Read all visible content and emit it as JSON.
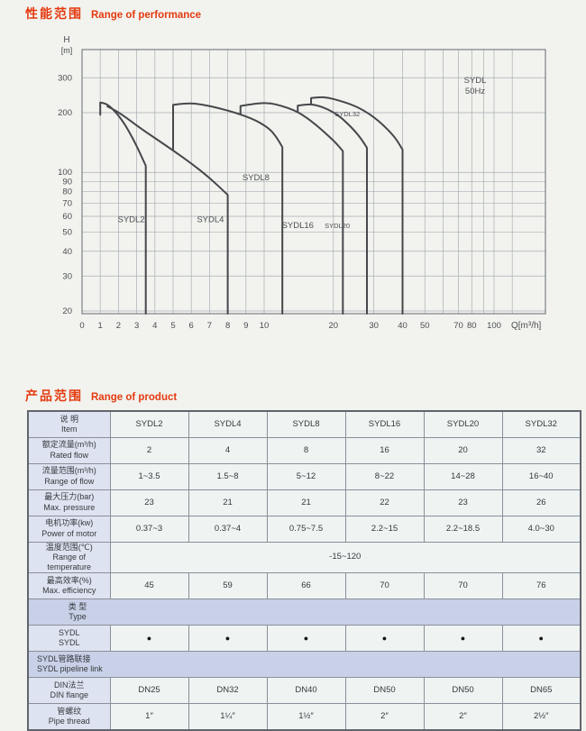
{
  "performance": {
    "title_zh": "性能范围",
    "title_en": "Range of performance",
    "annotation": {
      "line1": "SYDL",
      "line2": "50Hz"
    }
  },
  "chart_data": {
    "type": "area",
    "title": "SYDL 50Hz",
    "xlabel": "Q[m³/h]",
    "ylabel_1": "H",
    "ylabel_2": "[m]",
    "x_scale": "linear 0-10 then log 10-100",
    "y_scale": "log",
    "xlim": [
      0,
      130
    ],
    "ylim": [
      20,
      410
    ],
    "grid": true,
    "grid_x": [
      1,
      2,
      3,
      4,
      5,
      6,
      7,
      8,
      9,
      10,
      20,
      30,
      40,
      50,
      60,
      70,
      80,
      90,
      100,
      120
    ],
    "grid_y": [
      20,
      30,
      40,
      50,
      60,
      70,
      80,
      90,
      100,
      200,
      300
    ],
    "x_ticks_labeled": [
      0,
      1,
      2,
      3,
      4,
      5,
      6,
      7,
      8,
      9,
      10,
      20,
      30,
      40,
      50,
      70,
      80,
      100
    ],
    "y_ticks_labeled": [
      20,
      30,
      40,
      50,
      60,
      70,
      80,
      90,
      100,
      200,
      300
    ],
    "series": [
      {
        "name": "SYDL2",
        "flow_range": [
          1,
          3.5
        ],
        "max_head": 225,
        "envelope": [
          [
            1,
            195
          ],
          [
            1,
            225
          ],
          [
            1.3,
            224
          ],
          [
            1.8,
            204
          ],
          [
            2.3,
            178
          ],
          [
            2.8,
            148
          ],
          [
            3.2,
            124
          ],
          [
            3.5,
            108
          ]
        ]
      },
      {
        "name": "SYDL4",
        "flow_range": [
          1.5,
          8
        ],
        "max_head": 215,
        "envelope": [
          [
            1.4,
            215
          ],
          [
            2,
            202
          ],
          [
            3,
            172
          ],
          [
            4,
            149
          ],
          [
            5,
            129
          ],
          [
            6,
            111
          ],
          [
            7,
            94
          ],
          [
            8,
            77
          ]
        ]
      },
      {
        "name": "SYDL8",
        "flow_range": [
          5,
          12
        ],
        "max_head": 224,
        "envelope": [
          [
            5,
            129
          ],
          [
            5,
            219
          ],
          [
            5.8,
            224
          ],
          [
            6.6,
            220
          ],
          [
            7.5,
            211
          ],
          [
            8.5,
            199
          ],
          [
            9.5,
            184
          ],
          [
            10.5,
            167
          ],
          [
            11.3,
            151
          ],
          [
            12,
            134
          ]
        ]
      },
      {
        "name": "SYDL16",
        "flow_range": [
          8,
          22
        ],
        "max_head": 224,
        "envelope": [
          [
            8.7,
            196
          ],
          [
            8.7,
            216
          ],
          [
            9.6,
            223
          ],
          [
            10.6,
            224
          ],
          [
            12,
            216
          ],
          [
            13.5,
            206
          ],
          [
            15,
            192
          ],
          [
            17,
            172
          ],
          [
            19,
            153
          ],
          [
            20.5,
            141
          ],
          [
            22,
            128
          ]
        ]
      },
      {
        "name": "SYDL20",
        "flow_range": [
          14,
          28
        ],
        "max_head": 221,
        "envelope": [
          [
            14,
            201
          ],
          [
            14,
            217
          ],
          [
            15.5,
            221
          ],
          [
            17,
            218
          ],
          [
            19,
            208
          ],
          [
            21,
            194
          ],
          [
            23,
            177
          ],
          [
            25,
            160
          ],
          [
            26.5,
            147
          ],
          [
            28,
            133
          ]
        ]
      },
      {
        "name": "SYDL32",
        "flow_range": [
          16,
          40
        ],
        "max_head": 240,
        "envelope": [
          [
            16,
            220
          ],
          [
            16,
            237
          ],
          [
            17.5,
            240
          ],
          [
            19,
            238
          ],
          [
            21,
            231
          ],
          [
            24,
            220
          ],
          [
            27,
            206
          ],
          [
            30,
            190
          ],
          [
            33,
            173
          ],
          [
            36,
            156
          ],
          [
            38,
            144
          ],
          [
            40,
            130
          ]
        ]
      }
    ],
    "labels": [
      {
        "text": "SYDL2",
        "q": 2.7,
        "h": 58,
        "small": false
      },
      {
        "text": "SYDL4",
        "q": 7.05,
        "h": 58,
        "small": false
      },
      {
        "text": "SYDL8",
        "q": 9.55,
        "h": 94,
        "small": false
      },
      {
        "text": "SYDL16",
        "q": 14,
        "h": 54,
        "small": false
      },
      {
        "text": "SYDL20",
        "q": 20.8,
        "h": 54,
        "small": true
      },
      {
        "text": "SYDL32",
        "q": 23,
        "h": 198,
        "small": true
      }
    ],
    "colors": {
      "curve": "#46474b",
      "grid": "#a9aeb6",
      "frame": "#70757c",
      "text": "#4a4d52"
    }
  },
  "product": {
    "title_zh": "产品范围",
    "title_en": "Range of product",
    "table": {
      "header": {
        "zh": "说 明",
        "en": "Item",
        "models": [
          "SYDL2",
          "SYDL4",
          "SYDL8",
          "SYDL16",
          "SYDL20",
          "SYDL32"
        ]
      },
      "rows": [
        {
          "zh": "额定流量(m³/h)",
          "en": "Rated flow",
          "values": [
            "2",
            "4",
            "8",
            "16",
            "20",
            "32"
          ]
        },
        {
          "zh": "流量范围(m³/h)",
          "en": "Range of flow",
          "values": [
            "1~3.5",
            "1.5~8",
            "5~12",
            "8~22",
            "14~28",
            "16~40"
          ]
        },
        {
          "zh": "最大压力(bar)",
          "en": "Max. pressure",
          "values": [
            "23",
            "21",
            "21",
            "22",
            "23",
            "26"
          ]
        },
        {
          "zh": "电机功率(kw)",
          "en": "Power of motor",
          "values": [
            "0.37~3",
            "0.37~4",
            "0.75~7.5",
            "2.2~15",
            "2.2~18.5",
            "4.0~30"
          ]
        },
        {
          "zh": "温度范围(℃)",
          "en": "Range of temperature",
          "span_value": "-15~120"
        },
        {
          "zh": "最高效率(%)",
          "en": "Max. efficiency",
          "values": [
            "45",
            "59",
            "66",
            "70",
            "70",
            "76"
          ]
        },
        {
          "zh": "类 型",
          "en": "Type",
          "section": true,
          "variant": "center"
        },
        {
          "zh": "SYDL",
          "en": "SYDL",
          "dots": [
            true,
            true,
            true,
            true,
            true,
            true
          ],
          "dot_glyph": "●"
        },
        {
          "zh": "SYDL管路联接",
          "en": "SYDL pipeline link",
          "section": true,
          "variant": "left"
        },
        {
          "zh": "DIN法兰",
          "en": "DIN flange",
          "values": [
            "DN25",
            "DN32",
            "DN40",
            "DN50",
            "DN50",
            "DN65"
          ]
        },
        {
          "zh": "管螺纹",
          "en": "Pipe thread",
          "values": [
            "1″",
            "1¼″",
            "1½″",
            "2″",
            "2″",
            "2½″"
          ]
        }
      ]
    }
  }
}
